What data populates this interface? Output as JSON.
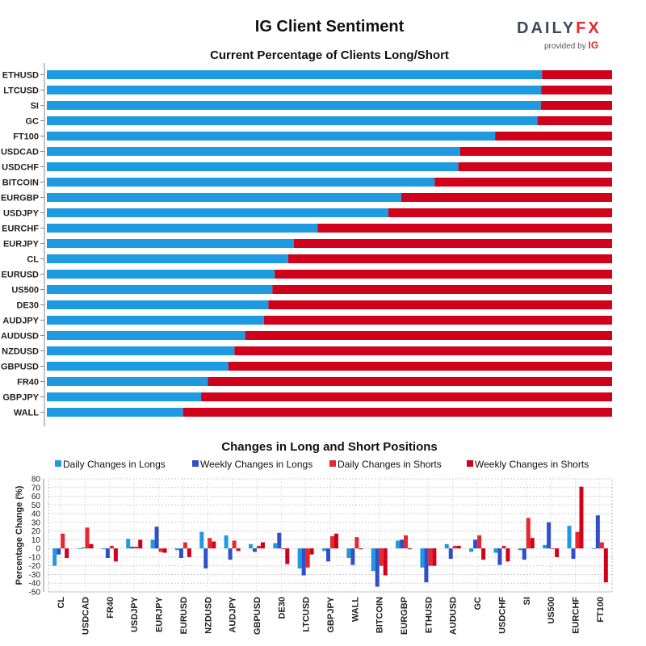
{
  "title": "IG Client Sentiment",
  "logo": {
    "brand_left": "DAILY",
    "brand_right": "FX",
    "provided_by": "provided by",
    "provider": "IG"
  },
  "colors": {
    "long": "#1e9be0",
    "short": "#d0021b",
    "weekly_long": "#3050c8",
    "daily_short": "#e8262d"
  },
  "chart_data": [
    {
      "type": "bar",
      "orientation": "horizontal",
      "stacked": true,
      "title": "Current Percentage of Clients Long/Short",
      "categories": [
        "ETHUSD",
        "LTCUSD",
        "SI",
        "GC",
        "FT100",
        "USDCAD",
        "USDCHF",
        "BITCOIN",
        "EURGBP",
        "USDJPY",
        "EURCHF",
        "EURJPY",
        "CL",
        "EURUSD",
        "US500",
        "DE30",
        "AUDJPY",
        "AUDUSD",
        "NZDUSD",
        "GBPUSD",
        "FR40",
        "GBPJPY",
        "WALL"
      ],
      "series": [
        {
          "name": "Long",
          "values": [
            87.6,
            87.5,
            87.4,
            86.8,
            79.3,
            73.1,
            72.8,
            68.6,
            62.7,
            60.4,
            47.9,
            43.7,
            42.7,
            40.3,
            39.9,
            39.2,
            38.4,
            35.1,
            33.2,
            32.1,
            28.5,
            27.3,
            24.1
          ]
        },
        {
          "name": "Short",
          "values": [
            12.4,
            12.5,
            12.6,
            13.2,
            20.7,
            26.9,
            27.2,
            31.4,
            37.3,
            39.6,
            52.1,
            56.3,
            57.3,
            59.7,
            60.1,
            60.8,
            61.6,
            64.9,
            66.8,
            67.9,
            71.5,
            72.7,
            75.9
          ]
        }
      ],
      "xlim": [
        0,
        100
      ]
    },
    {
      "type": "bar",
      "title": "Changes in Long and Short Positions",
      "ylabel": "Percentage Change (%)",
      "ylim": [
        -50,
        80
      ],
      "yticks": [
        "80",
        "70",
        "60",
        "50",
        "40",
        "30",
        "20",
        "10",
        "0",
        "-10",
        "-20",
        "-30",
        "-40",
        "-50"
      ],
      "grid": true,
      "legend_position": "top",
      "categories": [
        "CL",
        "USDCAD",
        "FR40",
        "USDJPY",
        "EURJPY",
        "EURUSD",
        "NZDUSD",
        "AUDJPY",
        "GBPUSD",
        "DE30",
        "LTCUSD",
        "GBPJPY",
        "WALL",
        "BITCOIN",
        "EURGBP",
        "ETHUSD",
        "AUDUSD",
        "GC",
        "USDCHF",
        "SI",
        "US500",
        "EURCHF",
        "FT100"
      ],
      "series": [
        {
          "name": "Daily Changes in Longs",
          "values": [
            -20,
            0,
            -1,
            11,
            10,
            -2,
            19,
            15,
            5,
            6,
            -23,
            -3,
            -11,
            -26,
            9,
            -22,
            5,
            -4,
            -5,
            -2,
            4,
            26,
            0
          ]
        },
        {
          "name": "Weekly Changes in Longs",
          "values": [
            -7,
            1,
            -11,
            2,
            25,
            -11,
            -23,
            -13,
            -4,
            18,
            -31,
            -15,
            -19,
            -44,
            10,
            -39,
            -12,
            10,
            -19,
            -13,
            30,
            -12,
            38
          ]
        },
        {
          "name": "Daily Changes in Shorts",
          "values": [
            17,
            24,
            3,
            2,
            -4,
            7,
            12,
            9,
            3,
            -1,
            -22,
            14,
            13,
            -20,
            15,
            -20,
            3,
            15,
            3,
            35,
            0,
            19,
            7
          ]
        },
        {
          "name": "Weekly Changes in Shorts",
          "values": [
            -11,
            5,
            -15,
            10,
            -5,
            -10,
            8,
            -3,
            7,
            -18,
            -7,
            17,
            -1,
            -31,
            -1,
            -20,
            3,
            -13,
            -15,
            12,
            -10,
            71,
            -39
          ]
        }
      ]
    }
  ]
}
